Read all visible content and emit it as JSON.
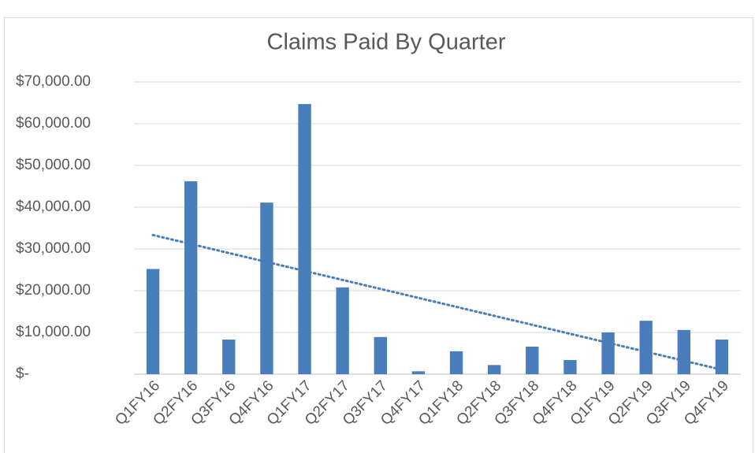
{
  "chart_data": {
    "type": "bar",
    "title": "Claims Paid By Quarter",
    "categories": [
      "Q1FY16",
      "Q2FY16",
      "Q3FY16",
      "Q4FY16",
      "Q1FY17",
      "Q2FY17",
      "Q3FY17",
      "Q4FY17",
      "Q1FY18",
      "Q2FY18",
      "Q3FY18",
      "Q4FY18",
      "Q1FY19",
      "Q2FY19",
      "Q3FY19",
      "Q4FY19"
    ],
    "values": [
      25200,
      46200,
      8300,
      41100,
      64700,
      20800,
      8900,
      700,
      5500,
      2200,
      6600,
      3400,
      10000,
      12800,
      10600,
      8300
    ],
    "color": "#4a7ebb",
    "trendline": "linear",
    "ylim": [
      0,
      70000
    ],
    "yticks": [
      {
        "value": 0,
        "label": "$-"
      },
      {
        "value": 10000,
        "label": "$10,000.00"
      },
      {
        "value": 20000,
        "label": "$20,000.00"
      },
      {
        "value": 30000,
        "label": "$30,000.00"
      },
      {
        "value": 40000,
        "label": "$40,000.00"
      },
      {
        "value": 50000,
        "label": "$50,000.00"
      },
      {
        "value": 60000,
        "label": "$60,000.00"
      },
      {
        "value": 70000,
        "label": "$70,000.00"
      }
    ],
    "grid": true
  }
}
